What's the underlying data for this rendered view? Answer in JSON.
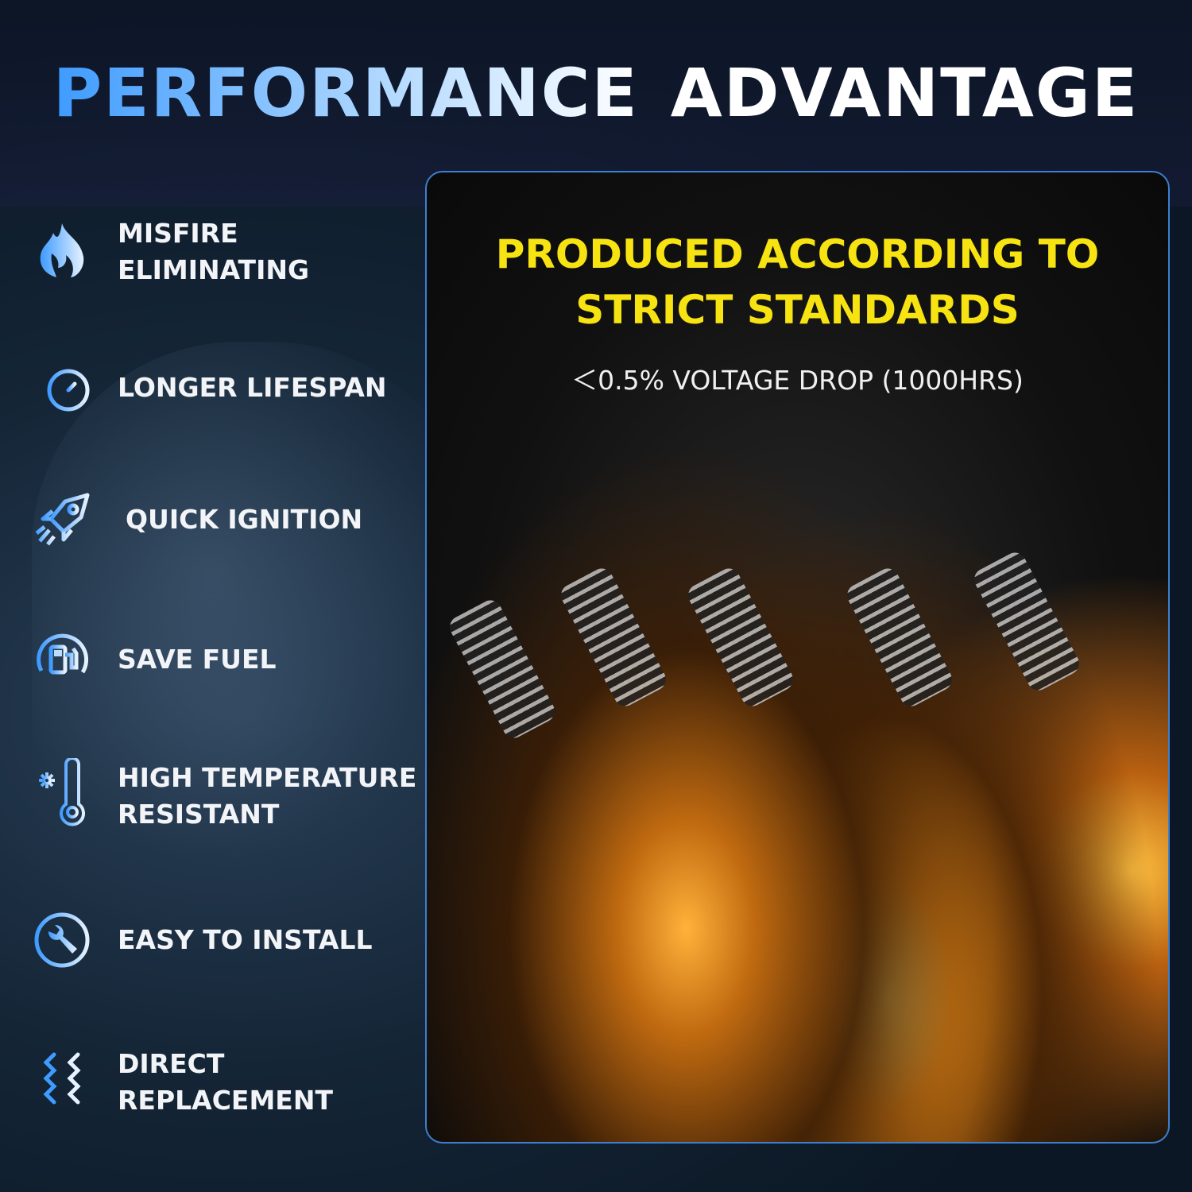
{
  "title": {
    "part1": "PERFORMANCE",
    "part2": "ADVANTAGE"
  },
  "features": [
    {
      "icon": "flame-icon",
      "label": "MISFIRE\nELIMINATING"
    },
    {
      "icon": "stopwatch-icon",
      "label": "LONGER LIFESPAN"
    },
    {
      "icon": "rocket-icon",
      "label": "QUICK IGNITION"
    },
    {
      "icon": "fuel-pump-icon",
      "label": "SAVE FUEL"
    },
    {
      "icon": "thermometer-icon",
      "label": "HIGH TEMPERATURE\nRESISTANT"
    },
    {
      "icon": "wrench-icon",
      "label": "EASY TO INSTALL"
    },
    {
      "icon": "wave-arrows-icon",
      "label": "DIRECT\nREPLACEMENT"
    }
  ],
  "panel": {
    "headline": "PRODUCED ACCORDING TO STRICT STANDARDS",
    "subtext": "＜0.5% VOLTAGE DROP (1000HRS)"
  },
  "colors": {
    "accent_blue": "#3e9bff",
    "headline_yellow": "#f7e311",
    "border": "#3d7fd0"
  }
}
